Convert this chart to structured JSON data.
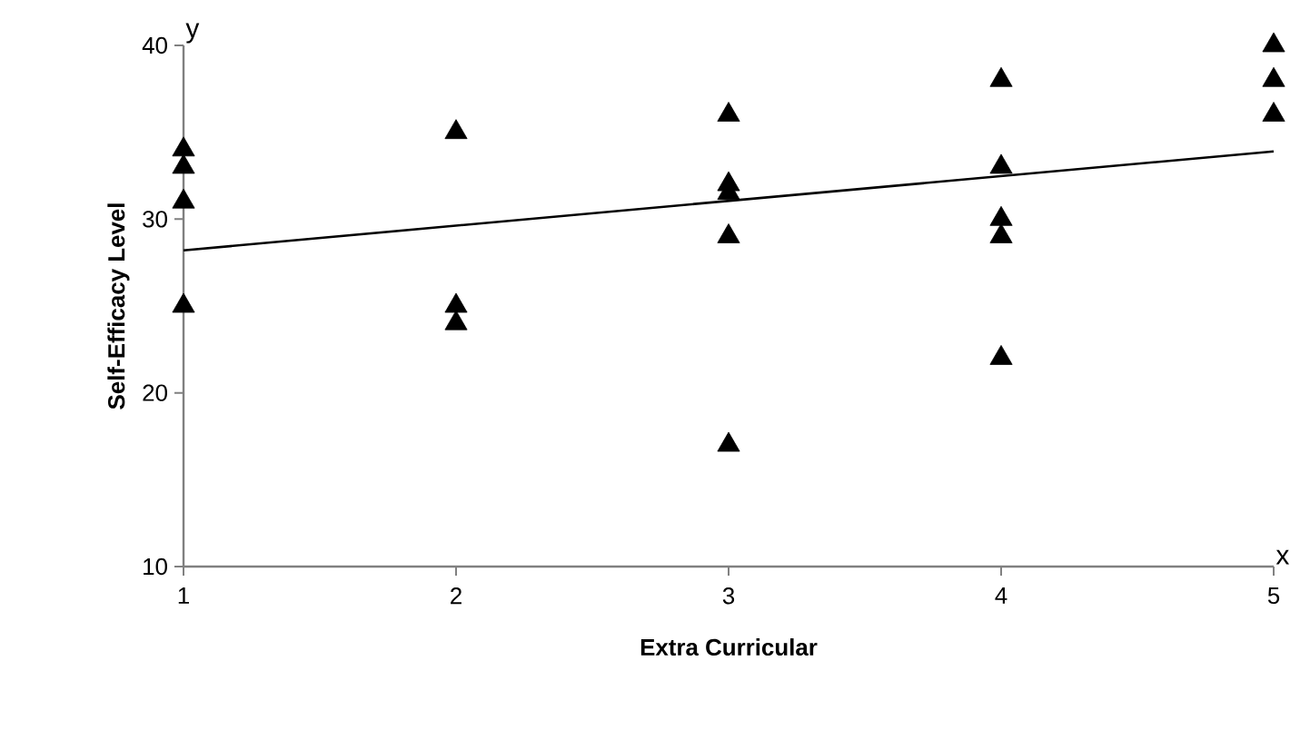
{
  "chart_data": {
    "type": "scatter",
    "xlabel": "Extra Curricular",
    "ylabel": "Self-Efficacy Level",
    "xlim": [
      1,
      5
    ],
    "ylim": [
      10,
      40
    ],
    "xticks": [
      1,
      2,
      3,
      4,
      5
    ],
    "yticks": [
      10,
      20,
      30,
      40
    ],
    "grid": false,
    "annotations": [
      "y",
      "x"
    ],
    "series": [
      {
        "marker": "triangle",
        "color": "#000000",
        "x": [
          1,
          1,
          1,
          1,
          2,
          2,
          2,
          3,
          3,
          3,
          3,
          3,
          4,
          4,
          4,
          4,
          4,
          5,
          5,
          5
        ],
        "values": [
          34,
          33,
          31,
          25,
          35,
          25,
          24,
          36,
          32,
          31.5,
          29,
          17,
          38,
          33,
          30,
          29,
          22,
          40,
          38,
          36
        ]
      },
      {
        "type": "line",
        "marker": "none",
        "color": "#000000",
        "x": [
          1,
          5
        ],
        "values": [
          28.2,
          33.9
        ]
      }
    ]
  }
}
